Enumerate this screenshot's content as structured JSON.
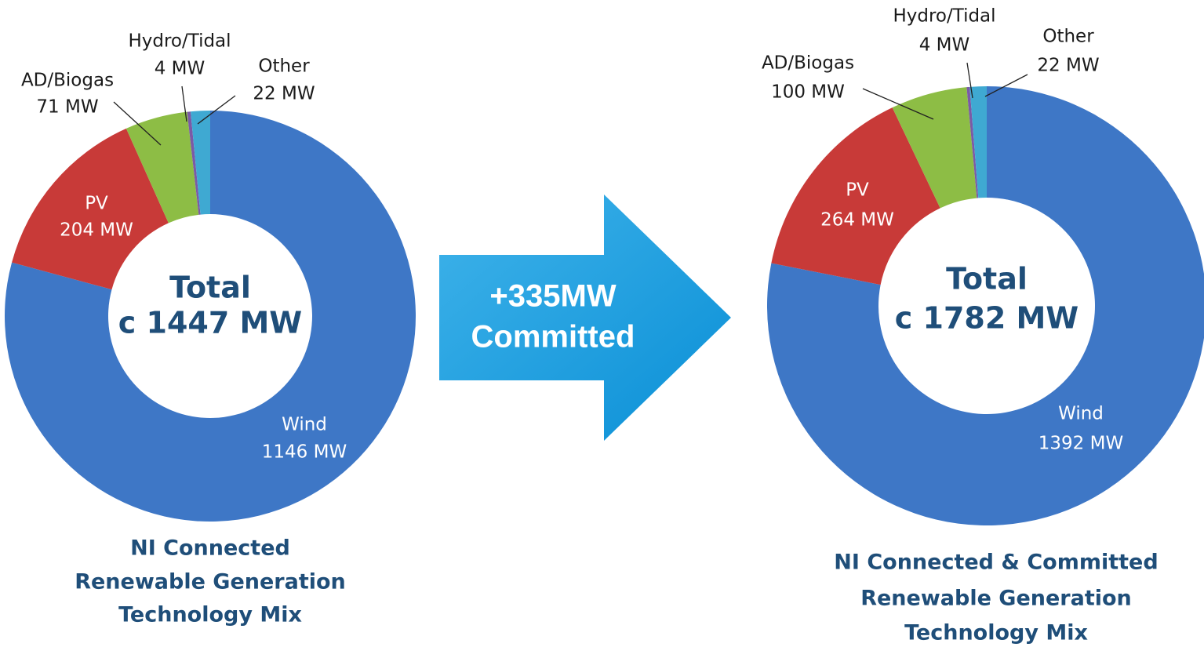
{
  "chart_data": [
    {
      "type": "pie",
      "donut": true,
      "title": [
        "NI Connected",
        "Renewable Generation",
        "Technology Mix"
      ],
      "center_label": [
        "Total",
        "c 1447 MW"
      ],
      "categories": [
        "Wind",
        "PV",
        "AD/Biogas",
        "Hydro/Tidal",
        "Other"
      ],
      "values": [
        1146,
        204,
        71,
        4,
        22
      ],
      "value_labels": [
        "1146 MW",
        "204 MW",
        "71 MW",
        "4 MW",
        "22 MW"
      ],
      "colors": [
        "#3e77c6",
        "#c83a38",
        "#8dbd45",
        "#7b5aa6",
        "#3fa9d2"
      ]
    },
    {
      "type": "pie",
      "donut": true,
      "title": [
        "NI Connected & Committed",
        "Renewable Generation",
        "Technology Mix"
      ],
      "center_label": [
        "Total",
        "c 1782 MW"
      ],
      "categories": [
        "Wind",
        "PV",
        "AD/Biogas",
        "Hydro/Tidal",
        "Other"
      ],
      "values": [
        1392,
        264,
        100,
        4,
        22
      ],
      "value_labels": [
        "1392 MW",
        "264 MW",
        "100 MW",
        "4 MW",
        "22 MW"
      ],
      "colors": [
        "#3e77c6",
        "#c83a38",
        "#8dbd45",
        "#7b5aa6",
        "#3fa9d2"
      ]
    }
  ],
  "arrow_label": [
    "+335MW",
    "Committed"
  ]
}
